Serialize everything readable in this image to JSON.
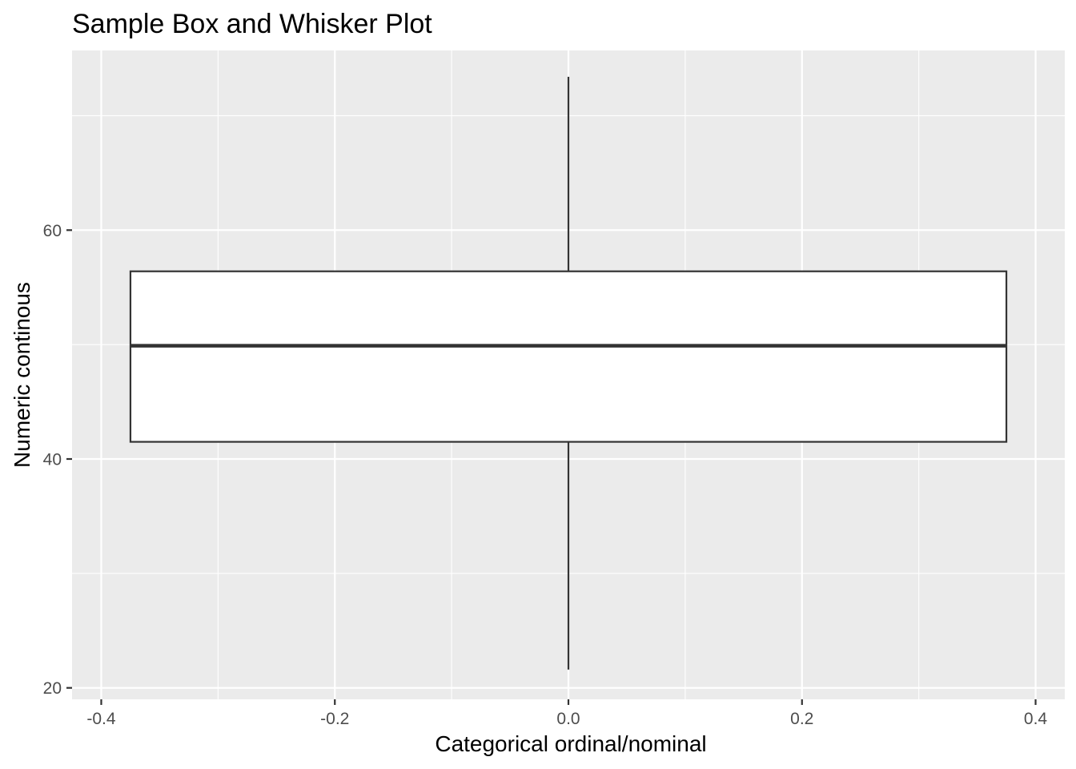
{
  "chart_data": {
    "type": "box",
    "title": "Sample Box and Whisker Plot",
    "xlabel": "Categorical ordinal/nominal",
    "ylabel": "Numeric continous",
    "xlim": [
      -0.425,
      0.425
    ],
    "ylim": [
      19.0,
      75.7
    ],
    "x_ticks": [
      -0.4,
      -0.2,
      0.0,
      0.2,
      0.4
    ],
    "x_tick_labels": [
      "-0.4",
      "-0.2",
      "0.0",
      "0.2",
      "0.4"
    ],
    "x_minor_ticks": [
      -0.3,
      -0.1,
      0.1,
      0.3
    ],
    "y_ticks": [
      20,
      40,
      60
    ],
    "y_tick_labels": [
      "20",
      "40",
      "60"
    ],
    "y_minor_ticks": [
      30,
      50,
      70
    ],
    "grid": true,
    "legend": "none",
    "boxes": [
      {
        "x": 0.0,
        "width": 0.75,
        "whisker_low": 21.6,
        "q1": 41.5,
        "median": 49.9,
        "q3": 56.4,
        "whisker_high": 73.4
      }
    ],
    "colors": {
      "panel_background": "#ebebeb",
      "grid_line": "#ffffff",
      "box_fill": "#ffffff",
      "box_stroke": "#333333",
      "axis_tick": "#333333"
    }
  }
}
